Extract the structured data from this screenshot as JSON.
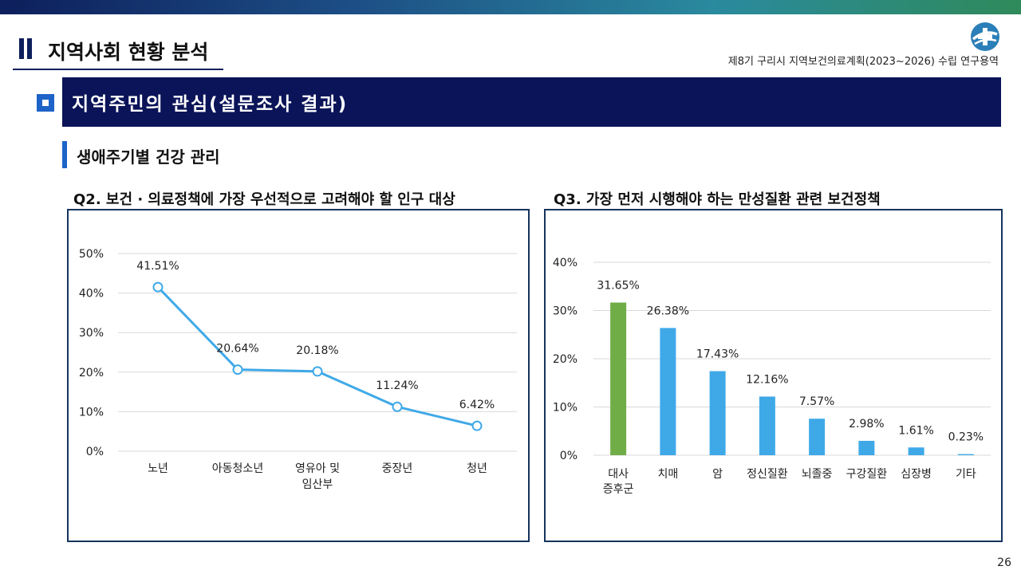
{
  "header": {
    "title": "지역사회 현황 분석",
    "report_name": "제8기 구리시 지역보건의료계획(2023~2026) 수립 연구용역"
  },
  "banner": {
    "title": "지역주민의 관심(설문조사 결과)"
  },
  "section": {
    "title": "생애주기별 건강 관리"
  },
  "page_number": "26",
  "colors": {
    "navy": "#0b1458",
    "accent_blue": "#1e63c8",
    "line_blue": "#3fa9e8",
    "bar_green": "#70ad47"
  },
  "chart_data": [
    {
      "type": "line",
      "title": "Q2. 보건 · 의료정책에 가장 우선적으로 고려해야 할 인구 대상",
      "categories": [
        [
          "노년"
        ],
        [
          "아동청소년"
        ],
        [
          "영유아 및",
          "임산부"
        ],
        [
          "중장년"
        ],
        [
          "청년"
        ]
      ],
      "values": [
        41.51,
        20.64,
        20.18,
        11.24,
        6.42
      ],
      "data_labels": [
        "41.51%",
        "20.64%",
        "20.18%",
        "11.24%",
        "6.42%"
      ],
      "ylim": [
        0,
        50
      ],
      "yticks": [
        "0%",
        "10%",
        "20%",
        "30%",
        "40%",
        "50%"
      ],
      "grid": true,
      "color": "#3fa9e8"
    },
    {
      "type": "bar",
      "title": "Q3. 가장 먼저 시행해야 하는 만성질환 관련 보건정책",
      "categories": [
        [
          "대사",
          "증후군"
        ],
        [
          "치매"
        ],
        [
          "암"
        ],
        [
          "정신질환"
        ],
        [
          "뇌졸중"
        ],
        [
          "구강질환"
        ],
        [
          "심장병"
        ],
        [
          "기타"
        ]
      ],
      "values": [
        31.65,
        26.38,
        17.43,
        12.16,
        7.57,
        2.98,
        1.61,
        0.23
      ],
      "data_labels": [
        "31.65%",
        "26.38%",
        "17.43%",
        "12.16%",
        "7.57%",
        "2.98%",
        "1.61%",
        "0.23%"
      ],
      "bar_colors": [
        "#70ad47",
        "#3fa9e8",
        "#3fa9e8",
        "#3fa9e8",
        "#3fa9e8",
        "#3fa9e8",
        "#3fa9e8",
        "#3fa9e8"
      ],
      "ylim": [
        0,
        40
      ],
      "yticks": [
        "0%",
        "10%",
        "20%",
        "30%",
        "40%"
      ],
      "grid": true
    }
  ]
}
